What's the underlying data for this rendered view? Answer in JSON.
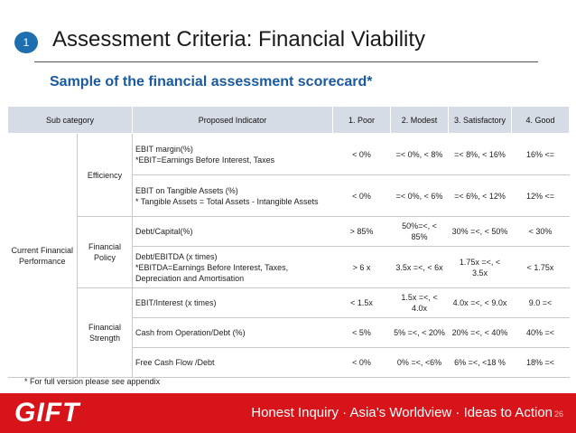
{
  "slide": {
    "number": "1",
    "title": "Assessment Criteria: Financial Viability",
    "subtitle": "Sample of the financial assessment scorecard*",
    "footnote": "* For full version please see appendix",
    "page_number": "26"
  },
  "footer": {
    "logo_text": "GIFT",
    "tagline": "Honest Inquiry · Asia’s Worldview · Ideas to Action"
  },
  "table": {
    "headers": [
      "Sub category",
      "Proposed Indicator",
      "1. Poor",
      "2. Modest",
      "3. Satisfactory",
      "4. Good"
    ],
    "category": "Current Financial Performance",
    "subcategories": [
      "Efficiency",
      "Financial Policy",
      "Financial Strength"
    ],
    "rows": [
      {
        "indicator": "EBIT margin(%)\n*EBIT=Earnings Before Interest, Taxes",
        "poor": "< 0%",
        "modest": "=< 0%, < 8%",
        "satisfactory": "=< 8%, < 16%",
        "good": "16% <="
      },
      {
        "indicator": "EBIT on Tangible Assets (%)\n* Tangible Assets = Total Assets - Intangible Assets",
        "poor": "< 0%",
        "modest": "=< 0%, < 6%",
        "satisfactory": "=< 6%, < 12%",
        "good": "12% <="
      },
      {
        "indicator": "Debt/Capital(%)",
        "poor": "> 85%",
        "modest": "50%=<, < 85%",
        "satisfactory": "30% =<, < 50%",
        "good": "< 30%"
      },
      {
        "indicator": "Debt/EBITDA (x times)\n*EBITDA=Earnings Before Interest, Taxes, Depreciation and Amortisation",
        "poor": "> 6 x",
        "modest": "3.5x =<, < 6x",
        "satisfactory": "1.75x =<, < 3.5x",
        "good": "< 1.75x"
      },
      {
        "indicator": "EBIT/Interest (x times)",
        "poor": "< 1.5x",
        "modest": "1.5x =<, < 4.0x",
        "satisfactory": "4.0x =<, < 9.0x",
        "good": "9.0 =<"
      },
      {
        "indicator": "Cash from Operation/Debt (%)",
        "poor": "< 5%",
        "modest": "5% =<, < 20%",
        "satisfactory": "20% =<, < 40%",
        "good": "40% =<"
      },
      {
        "indicator": "Free Cash Flow /Debt",
        "poor": "< 0%",
        "modest": "0% =<, <6%",
        "satisfactory": "6% =<, <18 %",
        "good": "18% =<"
      }
    ]
  }
}
